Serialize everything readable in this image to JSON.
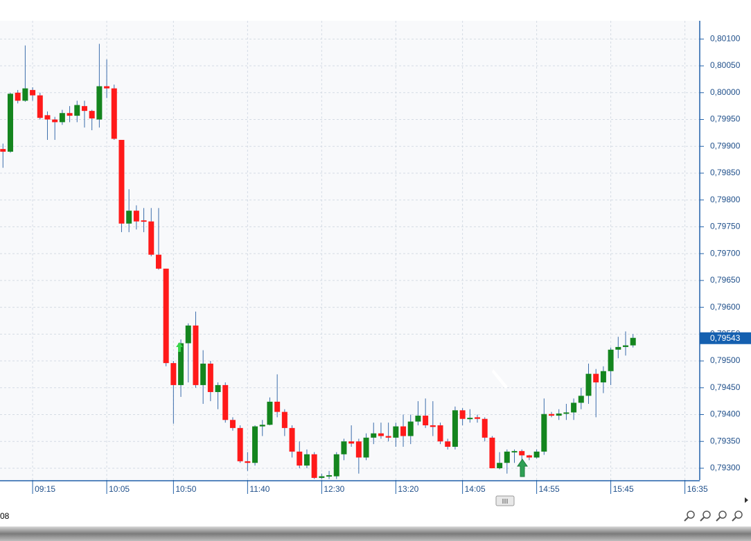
{
  "chart_data": {
    "type": "candlestick",
    "x": [
      "08:55",
      "09:00",
      "09:05",
      "09:10",
      "09:15",
      "09:20",
      "09:25",
      "09:30",
      "09:35",
      "09:40",
      "09:45",
      "09:50",
      "09:55",
      "10:00",
      "10:05",
      "10:10",
      "10:15",
      "10:20",
      "10:25",
      "10:30",
      "10:35",
      "10:40",
      "10:45",
      "10:50",
      "10:55",
      "11:00",
      "11:05",
      "11:10",
      "11:15",
      "11:20",
      "11:25",
      "11:30",
      "11:35",
      "11:40",
      "11:45",
      "11:50",
      "11:55",
      "12:00",
      "12:05",
      "12:10",
      "12:15",
      "12:20",
      "12:25",
      "12:30",
      "12:35",
      "12:40",
      "12:45",
      "12:50",
      "12:55",
      "13:00",
      "13:05",
      "13:10",
      "13:15",
      "13:20",
      "13:25",
      "13:30",
      "13:35",
      "13:40",
      "13:45",
      "13:50",
      "13:55",
      "14:00",
      "14:05",
      "14:10",
      "14:15",
      "14:20",
      "14:25",
      "14:30",
      "14:35",
      "14:40",
      "14:45",
      "14:50",
      "14:55",
      "15:00",
      "15:05",
      "15:10",
      "15:15",
      "15:20",
      "15:25",
      "15:30",
      "15:35",
      "15:40",
      "15:45",
      "15:50",
      "15:55",
      "16:00"
    ],
    "open": [
      0.79895,
      0.7989,
      0.8,
      0.79985,
      0.80005,
      0.79995,
      0.79958,
      0.7995,
      0.79945,
      0.79962,
      0.79957,
      0.79975,
      0.79966,
      0.7995,
      0.80012,
      0.80008,
      0.79912,
      0.79756,
      0.7978,
      0.79762,
      0.7976,
      0.79698,
      0.79672,
      0.79496,
      0.79455,
      0.79533,
      0.79566,
      0.79455,
      0.79495,
      0.79442,
      0.79455,
      0.7939,
      0.79375,
      0.79313,
      0.7931,
      0.79378,
      0.79381,
      0.79424,
      0.79405,
      0.79375,
      0.79331,
      0.79305,
      0.79326,
      0.79282,
      0.79285,
      0.79285,
      0.79326,
      0.7935,
      0.7935,
      0.7932,
      0.79357,
      0.79365,
      0.7936,
      0.79357,
      0.79378,
      0.7936,
      0.79387,
      0.79398,
      0.7938,
      0.7938,
      0.7935,
      0.7934,
      0.79408,
      0.79392,
      0.79395,
      0.79392,
      0.79357,
      0.793,
      0.7931,
      0.79331,
      0.79332,
      0.79324,
      0.7932,
      0.79331,
      0.79401,
      0.79398,
      0.79402,
      0.79404,
      0.79422,
      0.79435,
      0.79476,
      0.7946,
      0.79481,
      0.79521,
      0.79526,
      0.79529
    ],
    "high": [
      0.79905,
      0.8,
      0.80005,
      0.80088,
      0.8001,
      0.8,
      0.79965,
      0.79955,
      0.79968,
      0.79975,
      0.79985,
      0.79985,
      0.79968,
      0.80091,
      0.80062,
      0.80015,
      0.79912,
      0.7982,
      0.7979,
      0.79785,
      0.79785,
      0.79785,
      0.79672,
      0.795,
      0.7954,
      0.7957,
      0.79592,
      0.7952,
      0.795,
      0.7946,
      0.7946,
      0.79395,
      0.7938,
      0.7933,
      0.7938,
      0.7939,
      0.79432,
      0.79475,
      0.7941,
      0.7938,
      0.7935,
      0.79335,
      0.7933,
      0.7929,
      0.79295,
      0.7933,
      0.79355,
      0.7938,
      0.79355,
      0.79365,
      0.79385,
      0.79385,
      0.79385,
      0.79385,
      0.794,
      0.794,
      0.79425,
      0.7943,
      0.79425,
      0.79385,
      0.79355,
      0.79415,
      0.79412,
      0.7941,
      0.794,
      0.79395,
      0.7936,
      0.7933,
      0.79335,
      0.79335,
      0.79335,
      0.79325,
      0.79335,
      0.7943,
      0.79405,
      0.7941,
      0.7942,
      0.7943,
      0.7945,
      0.79495,
      0.79485,
      0.7949,
      0.79525,
      0.79545,
      0.79555,
      0.7955
    ],
    "low": [
      0.7986,
      0.79888,
      0.7998,
      0.79983,
      0.79985,
      0.7995,
      0.79912,
      0.79912,
      0.7994,
      0.79945,
      0.79945,
      0.79935,
      0.7993,
      0.79935,
      0.7999,
      0.79912,
      0.7974,
      0.7974,
      0.79745,
      0.7974,
      0.79695,
      0.7967,
      0.7949,
      0.79383,
      0.79433,
      0.7946,
      0.7945,
      0.7942,
      0.79425,
      0.7941,
      0.79385,
      0.7937,
      0.7931,
      0.79295,
      0.79305,
      0.7936,
      0.7938,
      0.79395,
      0.7936,
      0.7932,
      0.793,
      0.793,
      0.7928,
      0.7928,
      0.7928,
      0.7928,
      0.79315,
      0.7934,
      0.7929,
      0.79315,
      0.79345,
      0.79355,
      0.7935,
      0.7934,
      0.7934,
      0.79345,
      0.7938,
      0.79375,
      0.7936,
      0.79345,
      0.79335,
      0.79335,
      0.7938,
      0.79385,
      0.79385,
      0.7935,
      0.793,
      0.79298,
      0.7929,
      0.7931,
      0.79305,
      0.79315,
      0.79318,
      0.79325,
      0.79395,
      0.7939,
      0.7939,
      0.7939,
      0.7941,
      0.7942,
      0.79395,
      0.7944,
      0.79455,
      0.79505,
      0.7951,
      0.79525
    ],
    "close": [
      0.7989,
      0.79998,
      0.79985,
      0.80008,
      0.79995,
      0.79953,
      0.7995,
      0.79945,
      0.79962,
      0.79957,
      0.79977,
      0.79966,
      0.79952,
      0.80012,
      0.80008,
      0.79914,
      0.79756,
      0.7978,
      0.7976,
      0.7976,
      0.79698,
      0.79672,
      0.79496,
      0.79455,
      0.79533,
      0.79566,
      0.79455,
      0.79495,
      0.79442,
      0.79455,
      0.7939,
      0.79375,
      0.79313,
      0.7931,
      0.79378,
      0.79381,
      0.79424,
      0.79405,
      0.79375,
      0.79331,
      0.79305,
      0.79326,
      0.79282,
      0.79285,
      0.79287,
      0.79326,
      0.7935,
      0.79346,
      0.7932,
      0.79357,
      0.79365,
      0.7936,
      0.79357,
      0.79378,
      0.7936,
      0.79387,
      0.79398,
      0.7938,
      0.79377,
      0.7935,
      0.7934,
      0.79408,
      0.79392,
      0.79394,
      0.79392,
      0.79357,
      0.793,
      0.7931,
      0.79331,
      0.79332,
      0.79324,
      0.7932,
      0.79331,
      0.79401,
      0.79398,
      0.79402,
      0.79404,
      0.79422,
      0.79435,
      0.79476,
      0.7946,
      0.79481,
      0.79521,
      0.79526,
      0.79529,
      0.79543
    ],
    "up_color": "#14851e",
    "down_color": "#ff1a1a",
    "wick_color": "#3a6cab",
    "last_price": {
      "value": 0.79543,
      "label": "0,79543"
    },
    "ylim": [
      0.79278,
      0.80134
    ],
    "yticks": [
      {
        "value": 0.801,
        "label": "0,80100"
      },
      {
        "value": 0.8005,
        "label": "0,80050"
      },
      {
        "value": 0.8,
        "label": "0,80000"
      },
      {
        "value": 0.7995,
        "label": "0,79950"
      },
      {
        "value": 0.799,
        "label": "0,79900"
      },
      {
        "value": 0.7985,
        "label": "0,79850"
      },
      {
        "value": 0.798,
        "label": "0,79800"
      },
      {
        "value": 0.7975,
        "label": "0,79750"
      },
      {
        "value": 0.797,
        "label": "0,79700"
      },
      {
        "value": 0.7965,
        "label": "0,79650"
      },
      {
        "value": 0.796,
        "label": "0,79600"
      },
      {
        "value": 0.7955,
        "label": "0,79550"
      },
      {
        "value": 0.795,
        "label": "0,79500"
      },
      {
        "value": 0.7945,
        "label": "0,79450"
      },
      {
        "value": 0.794,
        "label": "0,79400"
      },
      {
        "value": 0.7935,
        "label": "0,79350"
      },
      {
        "value": 0.793,
        "label": "0,79300"
      }
    ],
    "xlim": [
      "08:53",
      "16:45"
    ],
    "xticks": [
      "09:15",
      "10:05",
      "10:50",
      "11:40",
      "12:30",
      "13:20",
      "14:05",
      "14:55",
      "15:45",
      "16:35"
    ],
    "grid": true
  },
  "status_text": "08"
}
